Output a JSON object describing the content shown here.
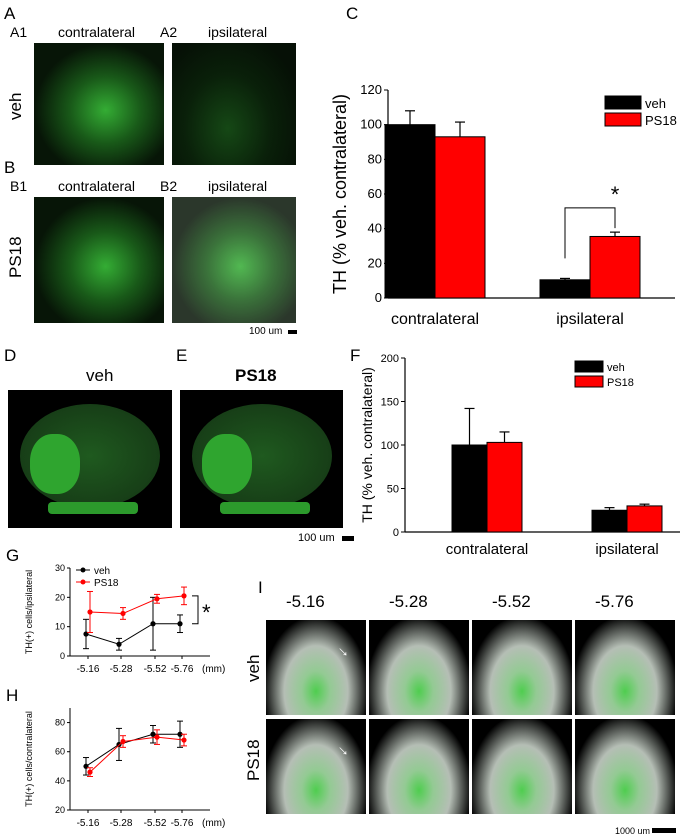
{
  "panels": {
    "A": {
      "label": "A",
      "sub1": "A1",
      "sub2": "A2",
      "col1": "contralateral",
      "col2": "ipsilateral",
      "row": "veh"
    },
    "B": {
      "label": "B",
      "sub1": "B1",
      "sub2": "B2",
      "col1": "contralateral",
      "col2": "ipsilateral",
      "row": "PS18",
      "scale": "100 um"
    },
    "C": {
      "label": "C"
    },
    "D": {
      "label": "D",
      "title": "veh"
    },
    "E": {
      "label": "E",
      "title": "PS18",
      "scale": "100 um"
    },
    "F": {
      "label": "F"
    },
    "G": {
      "label": "G"
    },
    "H": {
      "label": "H"
    },
    "I": {
      "label": "I",
      "cols": [
        "-5.16",
        "-5.28",
        "-5.52",
        "-5.76"
      ],
      "rows": [
        "veh",
        "PS18"
      ],
      "scale": "1000 um"
    }
  },
  "chart_data": [
    {
      "id": "C",
      "type": "bar",
      "categories": [
        "contralateral",
        "ipsilateral"
      ],
      "series": [
        {
          "name": "veh",
          "color": "#000000",
          "values": [
            100,
            10.5
          ],
          "err": [
            8,
            0.8
          ]
        },
        {
          "name": "PS18",
          "color": "#ff0000",
          "values": [
            93,
            35.5
          ],
          "err": [
            8.5,
            2.5
          ]
        }
      ],
      "ylabel": "TH (% veh. contralateral)",
      "ylim": [
        0,
        120
      ],
      "yticks": [
        "0",
        "20",
        "40",
        "60",
        "80",
        "100",
        "120"
      ],
      "legend": "top-right",
      "annotation": "*"
    },
    {
      "id": "F",
      "type": "bar",
      "categories": [
        "contralateral",
        "ipsilateral"
      ],
      "series": [
        {
          "name": "veh",
          "color": "#000000",
          "values": [
            100,
            25
          ],
          "err": [
            42,
            3
          ]
        },
        {
          "name": "PS18",
          "color": "#ff0000",
          "values": [
            103,
            30
          ],
          "err": [
            12,
            2
          ]
        }
      ],
      "ylabel": "TH (% veh. contralateral)",
      "ylim": [
        0,
        200
      ],
      "yticks": [
        "0",
        "50",
        "100",
        "150",
        "200"
      ],
      "legend": "top-right"
    },
    {
      "id": "G",
      "type": "line",
      "x": [
        "-5.16",
        "-5.28",
        "-5.52",
        "-5.76"
      ],
      "xunit": "(mm)",
      "series": [
        {
          "name": "veh",
          "color": "#000000",
          "values": [
            7.5,
            4,
            11,
            11
          ],
          "err": [
            5,
            2,
            9,
            3
          ]
        },
        {
          "name": "PS18",
          "color": "#ff0000",
          "values": [
            15,
            14.5,
            19.5,
            20.5
          ],
          "err": [
            7,
            2,
            1.5,
            3
          ]
        }
      ],
      "ylabel": "TH(+) cells/ipsilateral",
      "ylim": [
        0,
        30
      ],
      "yticks": [
        "0",
        "10",
        "20",
        "30"
      ],
      "legend": "top-left",
      "annotation": "*"
    },
    {
      "id": "H",
      "type": "line",
      "x": [
        "-5.16",
        "-5.28",
        "-5.52",
        "-5.76"
      ],
      "xunit": "(mm)",
      "series": [
        {
          "name": "veh",
          "color": "#000000",
          "values": [
            50,
            65,
            72,
            72
          ],
          "err": [
            6,
            11,
            6,
            9
          ]
        },
        {
          "name": "PS18",
          "color": "#ff0000",
          "values": [
            46,
            67,
            70,
            68
          ],
          "err": [
            3,
            4,
            5,
            4
          ]
        }
      ],
      "ylabel": "TH(+) cells/contralateral",
      "ylim": [
        20,
        90
      ],
      "yticks": [
        "20",
        "40",
        "60",
        "80"
      ]
    }
  ]
}
